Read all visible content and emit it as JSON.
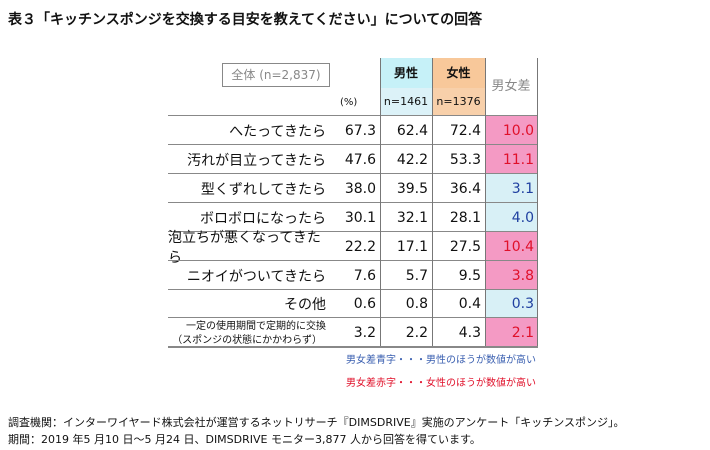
{
  "title": "表３「キッチンスポンジを交換する目安を教えてください」についての回答",
  "header": {
    "total": "全体 (n=2,837)",
    "unit": "(%)",
    "male": "男性",
    "male_n": "n=1461",
    "female": "女性",
    "female_n": "n=1376",
    "diff": "男女差"
  },
  "rows": [
    {
      "label": "へたってきたら",
      "total": "67.3",
      "male": "62.4",
      "female": "72.4",
      "diff": "10.0",
      "higher": "female"
    },
    {
      "label": "汚れが目立ってきたら",
      "total": "47.6",
      "male": "42.2",
      "female": "53.3",
      "diff": "11.1",
      "higher": "female"
    },
    {
      "label": "型くずれしてきたら",
      "total": "38.0",
      "male": "39.5",
      "female": "36.4",
      "diff": "3.1",
      "higher": "male"
    },
    {
      "label": "ボロボロになったら",
      "total": "30.1",
      "male": "32.1",
      "female": "28.1",
      "diff": "4.0",
      "higher": "male"
    },
    {
      "label": "泡立ちが悪くなってきたら",
      "total": "22.2",
      "male": "17.1",
      "female": "27.5",
      "diff": "10.4",
      "higher": "female"
    },
    {
      "label": "ニオイがついてきたら",
      "total": "7.6",
      "male": "5.7",
      "female": "9.5",
      "diff": "3.8",
      "higher": "female"
    },
    {
      "label": "その他",
      "total": "0.6",
      "male": "0.8",
      "female": "0.4",
      "diff": "0.3",
      "higher": "male"
    },
    {
      "label": "一定の使用期間で定期的に交換",
      "label2": "（スポンジの状態にかかわらず）",
      "total": "3.2",
      "male": "2.2",
      "female": "4.3",
      "diff": "2.1",
      "higher": "female"
    }
  ],
  "notes": {
    "blue": "男女差青字・・・男性のほうが数値が高い",
    "red": "男女差赤字・・・女性のほうが数値が高い"
  },
  "footer": {
    "line1": "調査機関：インターワイヤード株式会社が運営するネットリサーチ『DIMSDRIVE』実施のアンケート「キッチンスポンジ」。",
    "line2": "期間：2019 年5 月10 日～5 月24 日、DIMSDRIVE モニター3,877 人から回答を得ています。"
  },
  "colors": {
    "male_bg": "#d8f0f6",
    "female_bg": "#f49ac4",
    "blue": "#2040a0",
    "red": "#e0102a"
  }
}
